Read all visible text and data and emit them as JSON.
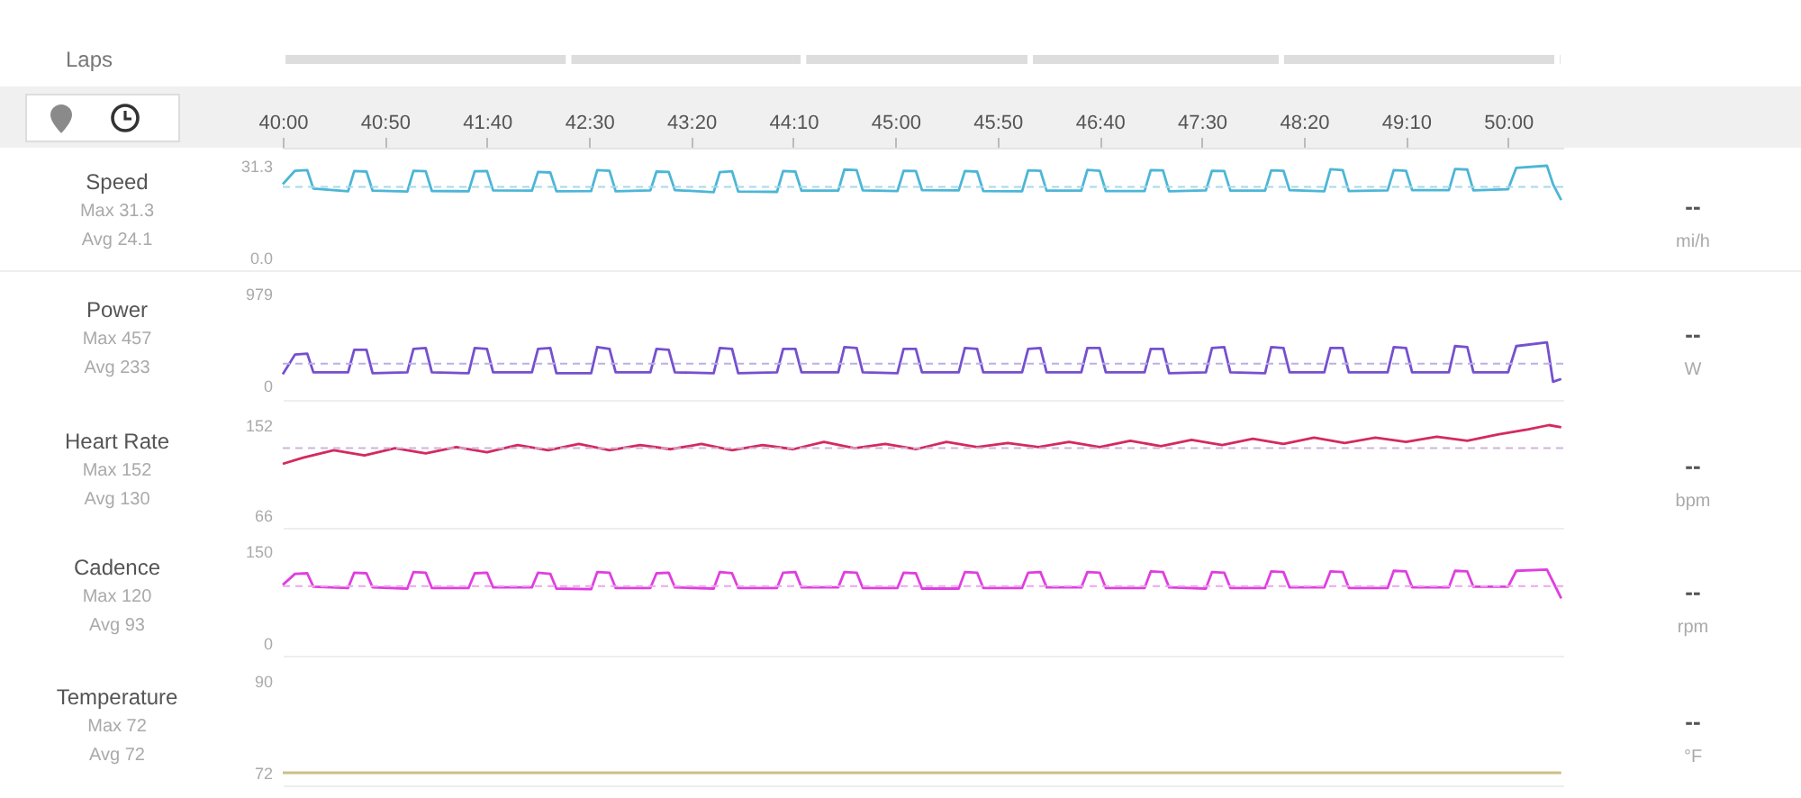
{
  "chart_data": [
    {
      "type": "bar",
      "orientation": "horizontal",
      "categories": [
        "Laps"
      ],
      "xlim": [
        2400,
        3027
      ],
      "tick_labels": "y",
      "series": [
        {
          "color": "#dddddd",
          "base": [
            2400
          ],
          "values": [
            140
          ]
        },
        {
          "color": "#dddddd",
          "base": [
            2540
          ],
          "values": [
            115
          ]
        },
        {
          "color": "#dddddd",
          "base": [
            2655
          ],
          "values": [
            111
          ]
        },
        {
          "color": "#dddddd",
          "base": [
            2766
          ],
          "values": [
            123
          ]
        },
        {
          "color": "#dddddd",
          "base": [
            2889
          ],
          "values": [
            135
          ]
        },
        {
          "color": "#dddddd",
          "base": [
            3024
          ],
          "values": [
            3
          ]
        }
      ]
    },
    {
      "type": "line",
      "title": "Speed",
      "ylabel": "mi/h",
      "annotations": [
        "Max 31.3",
        "Avg 24.1",
        "--"
      ],
      "color": "#4cb6d6",
      "line_style": "solid",
      "xlim": [
        2400,
        3027
      ],
      "ylim": [
        0,
        31.3
      ],
      "yticks": [
        {
          "value": 0,
          "label": "0.0"
        },
        31.3
      ],
      "xticks": [
        {
          "value": 2400,
          "label": "40:00"
        },
        {
          "value": 2450,
          "label": "40:50"
        },
        {
          "value": 2500,
          "label": "41:40"
        },
        {
          "value": 2550,
          "label": "42:30"
        },
        {
          "value": 2600,
          "label": "43:20"
        },
        {
          "value": 2650,
          "label": "44:10"
        },
        {
          "value": 2700,
          "label": "45:00"
        },
        {
          "value": 2750,
          "label": "45:50"
        },
        {
          "value": 2800,
          "label": "46:40"
        },
        {
          "value": 2850,
          "label": "47:30"
        },
        {
          "value": 2900,
          "label": "48:20"
        },
        {
          "value": 2950,
          "label": "49:10"
        },
        {
          "value": 3000,
          "label": "50:00"
        }
      ],
      "ref_lines": [
        {
          "axis": "y",
          "value": 24.1,
          "color": "#a8d8e8",
          "line_style": "dashed"
        }
      ],
      "x": [
        2400,
        2406,
        2412,
        2415,
        2432,
        2435,
        2441,
        2444,
        2461,
        2464,
        2470,
        2473,
        2491,
        2494,
        2500,
        2503,
        2522,
        2525,
        2531,
        2534,
        2551,
        2554,
        2560,
        2563,
        2580,
        2583,
        2589,
        2592,
        2611,
        2614,
        2620,
        2623,
        2642,
        2645,
        2651,
        2654,
        2672,
        2675,
        2681,
        2684,
        2701,
        2704,
        2710,
        2713,
        2731,
        2734,
        2740,
        2743,
        2762,
        2765,
        2771,
        2774,
        2791,
        2794,
        2800,
        2803,
        2822,
        2825,
        2831,
        2834,
        2852,
        2855,
        2861,
        2864,
        2881,
        2884,
        2890,
        2893,
        2910,
        2913,
        2919,
        2922,
        2941,
        2944,
        2950,
        2953,
        2971,
        2974,
        2980,
        2983,
        3000,
        3004,
        3019,
        3022,
        3026
      ],
      "values": [
        25.0,
        29.6,
        29.8,
        23.5,
        22.6,
        29.5,
        29.3,
        22.8,
        22.5,
        29.6,
        29.4,
        22.7,
        22.6,
        29.4,
        29.5,
        22.9,
        22.8,
        29.2,
        29.0,
        22.6,
        22.7,
        29.8,
        29.6,
        22.6,
        22.9,
        29.3,
        29.2,
        23.0,
        22.3,
        29.1,
        29.4,
        22.5,
        22.4,
        29.5,
        29.3,
        22.8,
        22.8,
        30.0,
        29.8,
        22.9,
        22.7,
        29.6,
        29.5,
        23.0,
        22.9,
        29.5,
        29.3,
        22.7,
        22.6,
        29.7,
        29.6,
        22.8,
        22.8,
        29.9,
        29.6,
        22.7,
        22.7,
        29.8,
        29.7,
        22.6,
        22.9,
        29.6,
        29.5,
        22.8,
        22.8,
        29.7,
        29.6,
        23.0,
        22.6,
        30.1,
        29.8,
        22.7,
        22.9,
        29.8,
        29.6,
        23.0,
        23.0,
        30.2,
        30.0,
        22.9,
        23.3,
        30.6,
        31.3,
        25.0,
        19.6
      ]
    },
    {
      "type": "line",
      "title": "Power",
      "ylabel": "W",
      "annotations": [
        "Max 457",
        "Avg 233",
        "--"
      ],
      "color": "#7650cf",
      "line_style": "solid",
      "xlim": [
        2400,
        3027
      ],
      "ylim": [
        0,
        979
      ],
      "yticks": [
        0,
        979
      ],
      "tick_labels": "y",
      "ref_lines": [
        {
          "axis": "y",
          "value": 233,
          "color": "#bcaee6",
          "line_style": "dashed"
        }
      ],
      "x": [
        2400,
        2406,
        2412,
        2415,
        2432,
        2435,
        2441,
        2444,
        2461,
        2464,
        2470,
        2473,
        2491,
        2494,
        2500,
        2503,
        2522,
        2525,
        2531,
        2534,
        2551,
        2554,
        2560,
        2563,
        2580,
        2583,
        2589,
        2592,
        2611,
        2614,
        2620,
        2623,
        2642,
        2645,
        2651,
        2654,
        2672,
        2675,
        2681,
        2684,
        2701,
        2704,
        2710,
        2713,
        2731,
        2734,
        2740,
        2743,
        2762,
        2765,
        2771,
        2774,
        2791,
        2794,
        2800,
        2803,
        2822,
        2825,
        2831,
        2834,
        2852,
        2855,
        2861,
        2864,
        2881,
        2884,
        2890,
        2893,
        2910,
        2913,
        2919,
        2922,
        2941,
        2944,
        2950,
        2953,
        2971,
        2974,
        2980,
        2983,
        3000,
        3004,
        3019,
        3022,
        3026
      ],
      "values": [
        120,
        330,
        340,
        140,
        140,
        380,
        380,
        130,
        140,
        390,
        400,
        140,
        130,
        400,
        390,
        140,
        140,
        390,
        400,
        130,
        130,
        410,
        390,
        140,
        140,
        390,
        380,
        140,
        130,
        400,
        390,
        130,
        140,
        390,
        390,
        140,
        140,
        410,
        400,
        140,
        130,
        390,
        390,
        140,
        140,
        400,
        390,
        140,
        140,
        390,
        400,
        140,
        140,
        400,
        400,
        140,
        140,
        390,
        390,
        130,
        140,
        400,
        410,
        140,
        130,
        410,
        400,
        140,
        140,
        400,
        400,
        140,
        140,
        410,
        400,
        140,
        140,
        420,
        410,
        140,
        140,
        420,
        460,
        40,
        70
      ]
    },
    {
      "type": "line",
      "title": "Heart Rate",
      "ylabel": "bpm",
      "annotations": [
        "Max 152",
        "Avg 130",
        "--"
      ],
      "color": "#d42a5f",
      "line_style": "solid",
      "xlim": [
        2400,
        3027
      ],
      "ylim": [
        66,
        152
      ],
      "yticks": [
        66,
        152
      ],
      "tick_labels": "y",
      "ref_lines": [
        {
          "axis": "y",
          "value": 130,
          "color": "#cdb4dc",
          "line_style": "dashed"
        }
      ],
      "x": [
        2400,
        2410,
        2425,
        2440,
        2455,
        2470,
        2485,
        2500,
        2515,
        2530,
        2545,
        2560,
        2575,
        2590,
        2605,
        2620,
        2635,
        2650,
        2665,
        2680,
        2695,
        2710,
        2725,
        2740,
        2755,
        2770,
        2785,
        2800,
        2815,
        2830,
        2845,
        2860,
        2875,
        2890,
        2905,
        2920,
        2935,
        2950,
        2965,
        2980,
        2995,
        3010,
        3020,
        3026
      ],
      "values": [
        115,
        121,
        128,
        123,
        130,
        125,
        131,
        126,
        133,
        128,
        134,
        128,
        133,
        129,
        134,
        128,
        133,
        129,
        136,
        130,
        134,
        129,
        136,
        131,
        135,
        131,
        136,
        131,
        137,
        132,
        138,
        133,
        139,
        134,
        140,
        135,
        140,
        136,
        141,
        137,
        143,
        148,
        152,
        150
      ]
    },
    {
      "type": "line",
      "title": "Cadence",
      "ylabel": "rpm",
      "annotations": [
        "Max 120",
        "Avg 93",
        "--"
      ],
      "color": "#e03ee0",
      "line_style": "solid",
      "xlim": [
        2400,
        3027
      ],
      "ylim": [
        0,
        150
      ],
      "yticks": [
        0,
        150
      ],
      "tick_labels": "y",
      "ref_lines": [
        {
          "axis": "y",
          "value": 93,
          "color": "#eba6eb",
          "line_style": "dashed"
        }
      ],
      "x": [
        2400,
        2406,
        2412,
        2415,
        2432,
        2435,
        2441,
        2444,
        2461,
        2464,
        2470,
        2473,
        2491,
        2494,
        2500,
        2503,
        2522,
        2525,
        2531,
        2534,
        2551,
        2554,
        2560,
        2563,
        2580,
        2583,
        2589,
        2592,
        2611,
        2614,
        2620,
        2623,
        2642,
        2645,
        2651,
        2654,
        2672,
        2675,
        2681,
        2684,
        2701,
        2704,
        2710,
        2713,
        2731,
        2734,
        2740,
        2743,
        2762,
        2765,
        2771,
        2774,
        2791,
        2794,
        2800,
        2803,
        2822,
        2825,
        2831,
        2834,
        2852,
        2855,
        2861,
        2864,
        2881,
        2884,
        2890,
        2893,
        2910,
        2913,
        2919,
        2922,
        2941,
        2944,
        2950,
        2953,
        2971,
        2974,
        2980,
        2983,
        3000,
        3004,
        3019,
        3022,
        3026
      ],
      "values": [
        95,
        113,
        114,
        92,
        90,
        115,
        114,
        91,
        89,
        116,
        115,
        90,
        90,
        114,
        115,
        91,
        91,
        115,
        113,
        89,
        88,
        116,
        115,
        90,
        90,
        114,
        115,
        91,
        89,
        116,
        114,
        90,
        90,
        115,
        116,
        91,
        91,
        116,
        115,
        90,
        90,
        115,
        114,
        89,
        89,
        116,
        115,
        90,
        90,
        115,
        116,
        91,
        91,
        116,
        115,
        90,
        90,
        117,
        116,
        91,
        89,
        116,
        115,
        90,
        90,
        117,
        116,
        91,
        91,
        117,
        116,
        90,
        90,
        118,
        117,
        91,
        91,
        118,
        117,
        92,
        92,
        118,
        120,
        100,
        73
      ]
    },
    {
      "type": "line",
      "title": "Temperature",
      "ylabel": "°F",
      "annotations": [
        "Max 72",
        "Avg 72",
        "--"
      ],
      "color": "#cdbf86",
      "line_style": "solid",
      "xlim": [
        2400,
        3027
      ],
      "ylim": [
        72,
        90
      ],
      "yticks": [
        72,
        90
      ],
      "tick_labels": "y",
      "x": [
        2400,
        3026
      ],
      "values": [
        72,
        72
      ]
    }
  ]
}
